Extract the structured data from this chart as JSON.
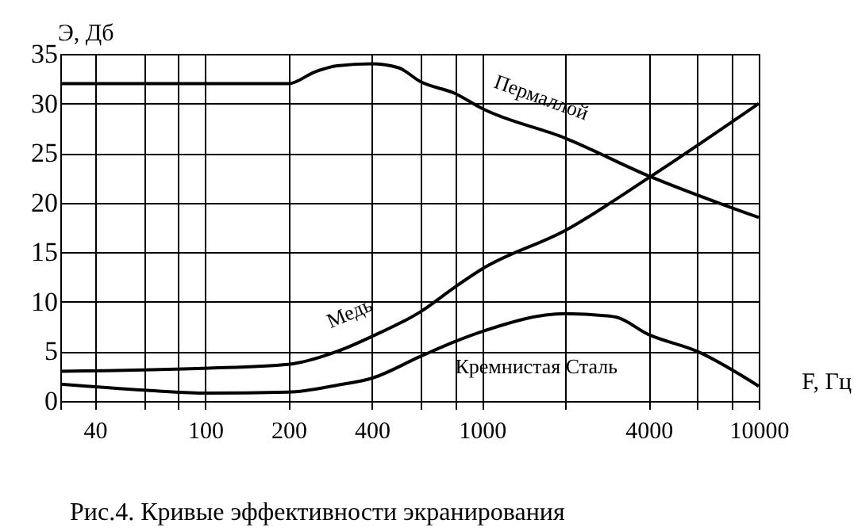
{
  "chart_data": {
    "type": "line",
    "title": "Рис.4. Кривые эффективности экранирования",
    "xlabel": "F, Гц",
    "ylabel": "Э, Дб",
    "log": "x",
    "grid": true,
    "legend": false,
    "marker": "none",
    "line_style": "solid",
    "xlim": [
      30,
      10000
    ],
    "ylim": [
      0,
      35
    ],
    "xticks": [
      {
        "value": 30,
        "label": null
      },
      40,
      {
        "value": 60,
        "label": null
      },
      {
        "value": 80,
        "label": null
      },
      100,
      200,
      400,
      {
        "value": 600,
        "label": null
      },
      {
        "value": 800,
        "label": null
      },
      1000,
      {
        "value": 2000,
        "label": null
      },
      4000,
      {
        "value": 6000,
        "label": null
      },
      {
        "value": 8000,
        "label": null
      },
      10000
    ],
    "yticks": [
      0,
      5,
      10,
      15,
      20,
      25,
      30,
      35
    ],
    "series": [
      {
        "name": "Пермаллой",
        "color": "#000000",
        "x": [
          30,
          100,
          200,
          250,
          300,
          400,
          500,
          600,
          800,
          1000,
          2000,
          4000,
          10000
        ],
        "values": [
          32,
          32,
          32,
          33.2,
          33.8,
          34,
          33.6,
          32.2,
          31,
          29.5,
          26.5,
          22.7,
          18.5
        ]
      },
      {
        "name": "Медь",
        "color": "#000000",
        "x": [
          30,
          100,
          200,
          300,
          400,
          600,
          800,
          1000,
          2000,
          4000,
          10000
        ],
        "values": [
          3,
          3.3,
          3.7,
          5,
          6.5,
          9,
          11.5,
          13.3,
          17.2,
          22.5,
          30
        ]
      },
      {
        "name": "Кремнистая Сталь",
        "color": "#000000",
        "x": [
          30,
          60,
          100,
          200,
          300,
          400,
          600,
          800,
          1000,
          2000,
          3000,
          4000,
          6000,
          10000
        ],
        "values": [
          1.7,
          1.1,
          0.8,
          0.9,
          1.6,
          2.3,
          4.5,
          6,
          7,
          8.8,
          8.5,
          6.7,
          5,
          1.5
        ]
      }
    ]
  }
}
